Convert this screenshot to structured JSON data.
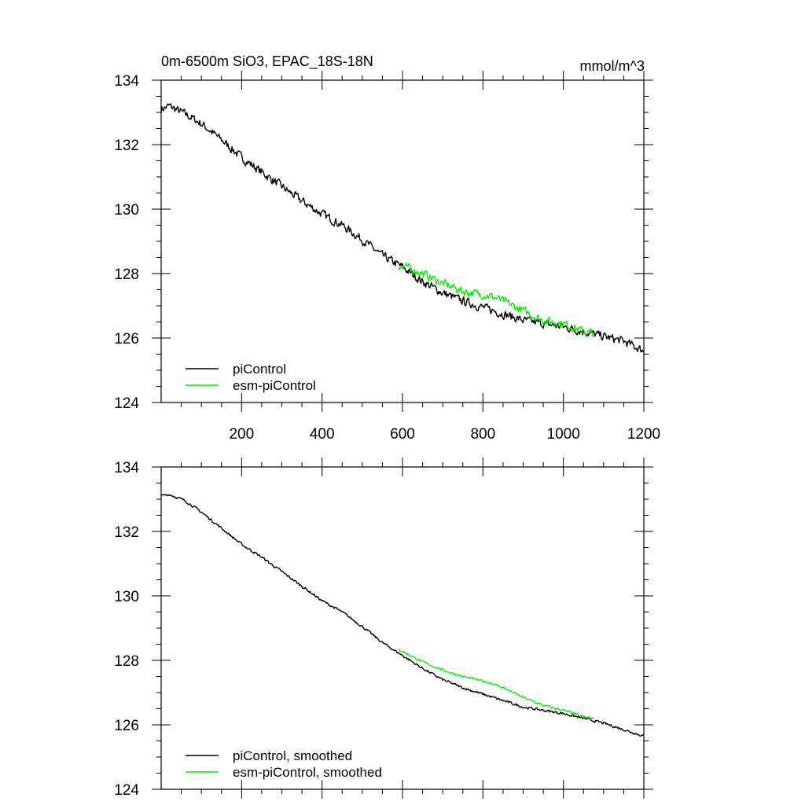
{
  "colors": {
    "pi": "#000000",
    "esm": "#00ee00"
  },
  "chart_data": [
    {
      "type": "line",
      "title": "0m-6500m SiO3, EPAC_18S-18N",
      "units": "mmol/m^3",
      "xlim": [
        0,
        1200
      ],
      "ylim": [
        124,
        134
      ],
      "x_ticks": [
        200,
        400,
        600,
        800,
        1000,
        1200
      ],
      "x_tick_labels": [
        "200",
        "400",
        "600",
        "800",
        "1000",
        "1200"
      ],
      "y_ticks": [
        124,
        126,
        128,
        130,
        132,
        134
      ],
      "y_tick_labels": [
        "124",
        "126",
        "128",
        "130",
        "132",
        "134"
      ],
      "legend_position": "bottom-left",
      "noise": 0.12,
      "series": [
        {
          "name": "piControl",
          "color": "#000000",
          "x": [
            0,
            20,
            60,
            100,
            150,
            200,
            250,
            300,
            350,
            400,
            450,
            500,
            550,
            600,
            650,
            700,
            750,
            800,
            850,
            900,
            950,
            1000,
            1050,
            1100,
            1150,
            1200
          ],
          "values": [
            133.1,
            133.2,
            132.95,
            132.65,
            132.15,
            131.6,
            131.15,
            130.7,
            130.25,
            129.85,
            129.5,
            129.05,
            128.55,
            128.2,
            127.75,
            127.4,
            127.15,
            126.95,
            126.75,
            126.55,
            126.45,
            126.35,
            126.2,
            126.05,
            125.9,
            125.6
          ]
        },
        {
          "name": "esm-piControl",
          "color": "#00ee00",
          "x": [
            590,
            620,
            650,
            700,
            750,
            800,
            820,
            850,
            900,
            950,
            1000,
            1050,
            1075
          ],
          "values": [
            128.25,
            128.15,
            128.0,
            127.7,
            127.45,
            127.35,
            127.3,
            127.15,
            126.85,
            126.55,
            126.45,
            126.2,
            126.15
          ]
        }
      ]
    },
    {
      "type": "line",
      "title": "",
      "units": "",
      "xlim": [
        0,
        1200
      ],
      "ylim": [
        124,
        134
      ],
      "x_ticks": [
        200,
        400,
        600,
        800,
        1000,
        1200
      ],
      "x_tick_labels": [],
      "y_ticks": [
        124,
        126,
        128,
        130,
        132,
        134
      ],
      "y_tick_labels": [
        "124",
        "126",
        "128",
        "130",
        "132",
        "134"
      ],
      "legend_position": "bottom-left",
      "noise": 0.035,
      "series": [
        {
          "name": "piControl, smoothed",
          "color": "#000000",
          "x": [
            0,
            20,
            60,
            100,
            150,
            200,
            250,
            300,
            350,
            400,
            450,
            500,
            550,
            600,
            650,
            700,
            750,
            800,
            850,
            900,
            950,
            1000,
            1050,
            1100,
            1150,
            1200
          ],
          "values": [
            133.1,
            133.15,
            132.95,
            132.6,
            132.1,
            131.6,
            131.2,
            130.75,
            130.3,
            129.85,
            129.5,
            129.05,
            128.55,
            128.15,
            127.75,
            127.4,
            127.15,
            126.95,
            126.75,
            126.55,
            126.45,
            126.35,
            126.2,
            126.05,
            125.85,
            125.65
          ]
        },
        {
          "name": "esm-piControl, smoothed",
          "color": "#00ee00",
          "x": [
            590,
            620,
            650,
            700,
            750,
            800,
            820,
            850,
            900,
            950,
            1000,
            1050,
            1075
          ],
          "values": [
            128.35,
            128.15,
            127.95,
            127.7,
            127.5,
            127.35,
            127.3,
            127.15,
            126.85,
            126.6,
            126.45,
            126.25,
            126.2
          ]
        }
      ]
    }
  ]
}
